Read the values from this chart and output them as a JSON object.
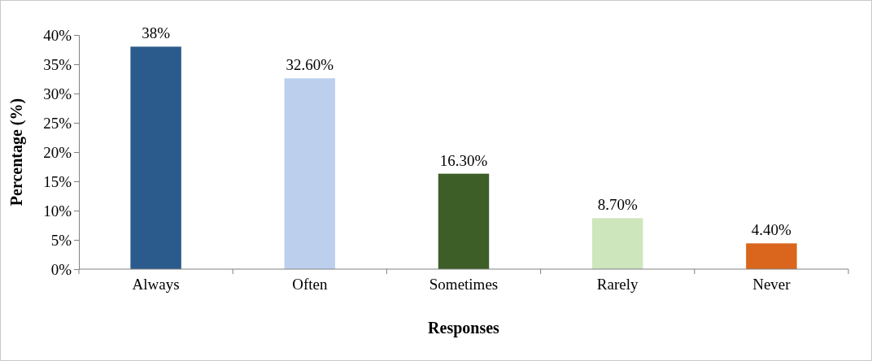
{
  "chart_data": {
    "type": "bar",
    "xlabel": "Responses",
    "ylabel": "Percentage (%)",
    "categories": [
      "Always",
      "Often",
      "Sometimes",
      "Rarely",
      "Never"
    ],
    "values": [
      38,
      32.6,
      16.3,
      8.7,
      4.4
    ],
    "colors": [
      "#2b5b8c",
      "#bcd0ee",
      "#3d5e27",
      "#cde6bc",
      "#d9661c"
    ],
    "value_labels": [
      "38%",
      "32.60%",
      "16.30%",
      "8.70%",
      "4.40%"
    ],
    "ylim": [
      0,
      40
    ],
    "yticks": [
      {
        "value": 0,
        "label": "0%"
      },
      {
        "value": 5,
        "label": "5%"
      },
      {
        "value": 10,
        "label": "10%"
      },
      {
        "value": 15,
        "label": "15%"
      },
      {
        "value": 20,
        "label": "20%"
      },
      {
        "value": 25,
        "label": "25%"
      },
      {
        "value": 30,
        "label": "30%"
      },
      {
        "value": 35,
        "label": "35%"
      },
      {
        "value": 40,
        "label": "40%"
      }
    ],
    "grid": false
  }
}
